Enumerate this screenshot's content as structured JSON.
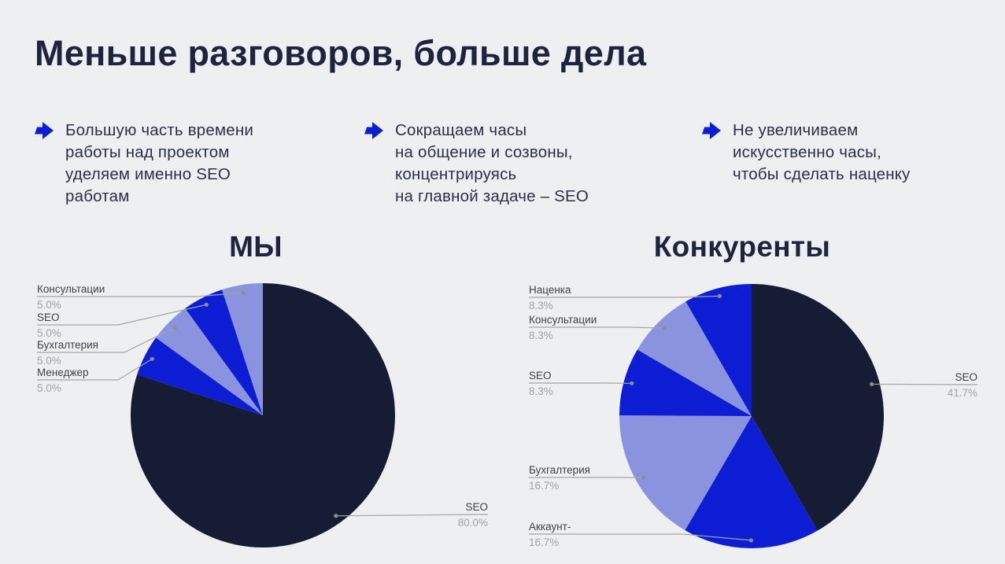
{
  "slide": {
    "title": "Меньше разговоров, больше дела",
    "bullets": [
      {
        "text": "Большую часть времени\nработы над проектом\nуделяем именно SEO\nработам"
      },
      {
        "text": "Сокращаем часы\nна общение и созвоны,\nконцентрируясь\nна главной задаче – SEO"
      },
      {
        "text": "Не увеличиваем\nискусственно часы,\nчтобы сделать наценку"
      }
    ]
  },
  "colors": {
    "background": "#eeeff1",
    "heading": "#1e2340",
    "body_text": "#2a3147",
    "accent_blue": "#0c1dd4",
    "pie_navy": "#171c35",
    "pie_blue": "#0c1dd4",
    "pie_periwinkle": "#8a94de",
    "callout_line": "#a5a5a5",
    "callout_dot": "#8e8e8e",
    "callout_name": "#3c4249",
    "callout_pct": "#a2a2a2"
  },
  "chart_data": [
    {
      "type": "pie",
      "title": "МЫ",
      "start_angle_deg": 0,
      "direction": "clockwise",
      "labels": [
        "SEO",
        "Менеджер",
        "Бухгалтерия",
        "SEO",
        "Консультации"
      ],
      "values": [
        80.0,
        5.0,
        5.0,
        5.0,
        5.0
      ],
      "percent_labels": [
        "80.0%",
        "5.0%",
        "5.0%",
        "5.0%",
        "5.0%"
      ],
      "colors": [
        "#171c35",
        "#0c1dd4",
        "#8a94de",
        "#0c1dd4",
        "#8a94de"
      ],
      "legend_position": "callouts"
    },
    {
      "type": "pie",
      "title": "Конкуренты",
      "start_angle_deg": 0,
      "direction": "clockwise",
      "labels": [
        "SEO",
        "Аккаунт-",
        "Бухгалтерия",
        "SEO",
        "Консультации",
        "Наценка"
      ],
      "values": [
        41.7,
        16.7,
        16.7,
        8.3,
        8.3,
        8.3
      ],
      "percent_labels": [
        "41.7%",
        "16.7%",
        "16.7%",
        "8.3%",
        "8.3%",
        "8.3%"
      ],
      "colors": [
        "#171c35",
        "#0c1dd4",
        "#8a94de",
        "#0c1dd4",
        "#8a94de",
        "#0c1dd4"
      ],
      "legend_position": "callouts"
    }
  ]
}
